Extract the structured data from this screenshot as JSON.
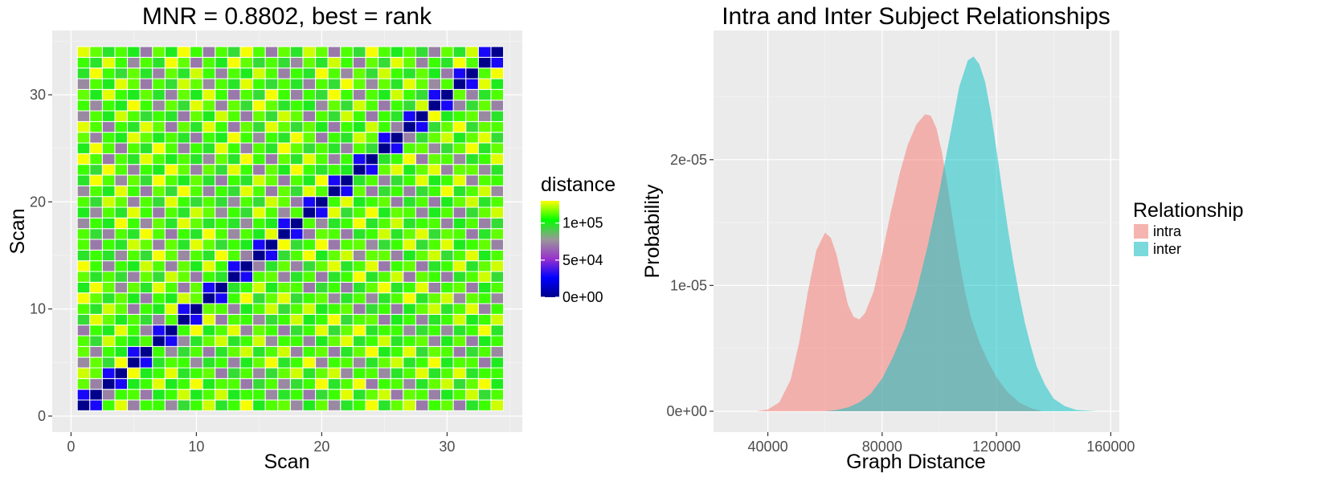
{
  "chart_data": [
    {
      "type": "heatmap",
      "title": "MNR = 0.8802, best = rank",
      "xlabel": "Scan",
      "ylabel": "Scan",
      "n": 34,
      "xlim": [
        -1.5,
        36
      ],
      "ylim": [
        -1.5,
        36
      ],
      "x_ticks": [
        0,
        10,
        20,
        30
      ],
      "x_tick_labels": [
        "0",
        "10",
        "20",
        "30"
      ],
      "y_ticks": [
        0,
        10,
        20,
        30
      ],
      "y_tick_labels": [
        "0",
        "10",
        "20",
        "30"
      ],
      "grid": true,
      "legend": {
        "title": "distance",
        "position": "right",
        "color_stops": [
          "#00008b",
          "#0000ff",
          "#9932cc",
          "#999999",
          "#00ff00",
          "#ffff00"
        ],
        "range": [
          0,
          130000
        ],
        "ticks": [
          0,
          50000,
          100000
        ],
        "tick_labels": [
          "0e+00",
          "5e+04",
          "1e+05"
        ]
      },
      "subjects": [
        [
          1,
          2
        ],
        [
          3,
          4
        ],
        [
          5,
          6
        ],
        [
          7,
          8
        ],
        [
          9,
          10
        ],
        [
          11,
          12
        ],
        [
          13,
          14
        ],
        [
          15,
          16
        ],
        [
          17,
          18
        ],
        [
          19,
          20
        ],
        [
          21,
          22
        ],
        [
          23,
          24
        ],
        [
          25,
          26
        ],
        [
          27,
          28
        ],
        [
          29,
          30
        ],
        [
          31,
          32
        ],
        [
          33,
          34
        ]
      ],
      "values": {
        "diagonal": 0,
        "intra_pair": 30000,
        "inter_low": 70000,
        "inter_mid": 95000,
        "inter_high": 110000,
        "inter_max": 125000
      }
    },
    {
      "type": "area",
      "title": "Intra and Inter Subject Relationships",
      "xlabel": "Graph Distance",
      "ylabel": "Probability",
      "xlim": [
        21000,
        163000
      ],
      "ylim": [
        0,
        2.95e-05
      ],
      "x_ticks": [
        40000,
        80000,
        120000,
        160000
      ],
      "x_tick_labels": [
        "40000",
        "80000",
        "120000",
        "160000"
      ],
      "y_ticks": [
        0,
        1e-05,
        2e-05
      ],
      "y_tick_labels": [
        "0e+00",
        "1e-05",
        "2e-05"
      ],
      "grid": true,
      "legend": {
        "title": "Relationship",
        "position": "right"
      },
      "series": [
        {
          "name": "intra",
          "color": "#f8766d",
          "points": [
            [
              36000,
              0
            ],
            [
              40000,
              1.5e-07
            ],
            [
              44000,
              7e-07
            ],
            [
              48000,
              2.5e-06
            ],
            [
              51000,
              5.5e-06
            ],
            [
              54000,
              9.5e-06
            ],
            [
              57000,
              1.28e-05
            ],
            [
              60000,
              1.42e-05
            ],
            [
              62000,
              1.38e-05
            ],
            [
              64000,
              1.25e-05
            ],
            [
              66000,
              1.05e-05
            ],
            [
              68000,
              8.5e-06
            ],
            [
              70000,
              7.5e-06
            ],
            [
              72000,
              7.3e-06
            ],
            [
              74000,
              7.8e-06
            ],
            [
              77000,
              9.5e-06
            ],
            [
              80000,
              1.25e-05
            ],
            [
              83000,
              1.58e-05
            ],
            [
              86000,
              1.88e-05
            ],
            [
              89000,
              2.12e-05
            ],
            [
              92000,
              2.28e-05
            ],
            [
              95000,
              2.36e-05
            ],
            [
              97000,
              2.35e-05
            ],
            [
              99000,
              2.25e-05
            ],
            [
              101000,
              2.05e-05
            ],
            [
              103000,
              1.78e-05
            ],
            [
              105000,
              1.48e-05
            ],
            [
              107000,
              1.2e-05
            ],
            [
              109000,
              9.5e-06
            ],
            [
              111000,
              7.5e-06
            ],
            [
              114000,
              5.5e-06
            ],
            [
              117000,
              4e-06
            ],
            [
              120000,
              2.7e-06
            ],
            [
              124000,
              1.5e-06
            ],
            [
              128000,
              7e-07
            ],
            [
              132000,
              2.5e-07
            ],
            [
              136000,
              0
            ]
          ]
        },
        {
          "name": "inter",
          "color": "#00bfc4",
          "points": [
            [
              60000,
              0
            ],
            [
              64000,
              1e-07
            ],
            [
              68000,
              3e-07
            ],
            [
              72000,
              7e-07
            ],
            [
              76000,
              1.4e-06
            ],
            [
              80000,
              2.6e-06
            ],
            [
              84000,
              4.4e-06
            ],
            [
              88000,
              6.6e-06
            ],
            [
              92000,
              9.5e-06
            ],
            [
              96000,
              1.32e-05
            ],
            [
              100000,
              1.75e-05
            ],
            [
              104000,
              2.22e-05
            ],
            [
              107000,
              2.58e-05
            ],
            [
              110000,
              2.79e-05
            ],
            [
              112000,
              2.82e-05
            ],
            [
              114000,
              2.76e-05
            ],
            [
              116000,
              2.62e-05
            ],
            [
              118000,
              2.38e-05
            ],
            [
              120000,
              2.08e-05
            ],
            [
              122000,
              1.76e-05
            ],
            [
              124000,
              1.45e-05
            ],
            [
              126000,
              1.17e-05
            ],
            [
              128000,
              9.2e-06
            ],
            [
              130000,
              7e-06
            ],
            [
              132000,
              5.2e-06
            ],
            [
              134000,
              3.6e-06
            ],
            [
              137000,
              2.1e-06
            ],
            [
              140000,
              1e-06
            ],
            [
              144000,
              4e-07
            ],
            [
              148000,
              1e-07
            ],
            [
              155000,
              0
            ]
          ]
        }
      ]
    }
  ]
}
